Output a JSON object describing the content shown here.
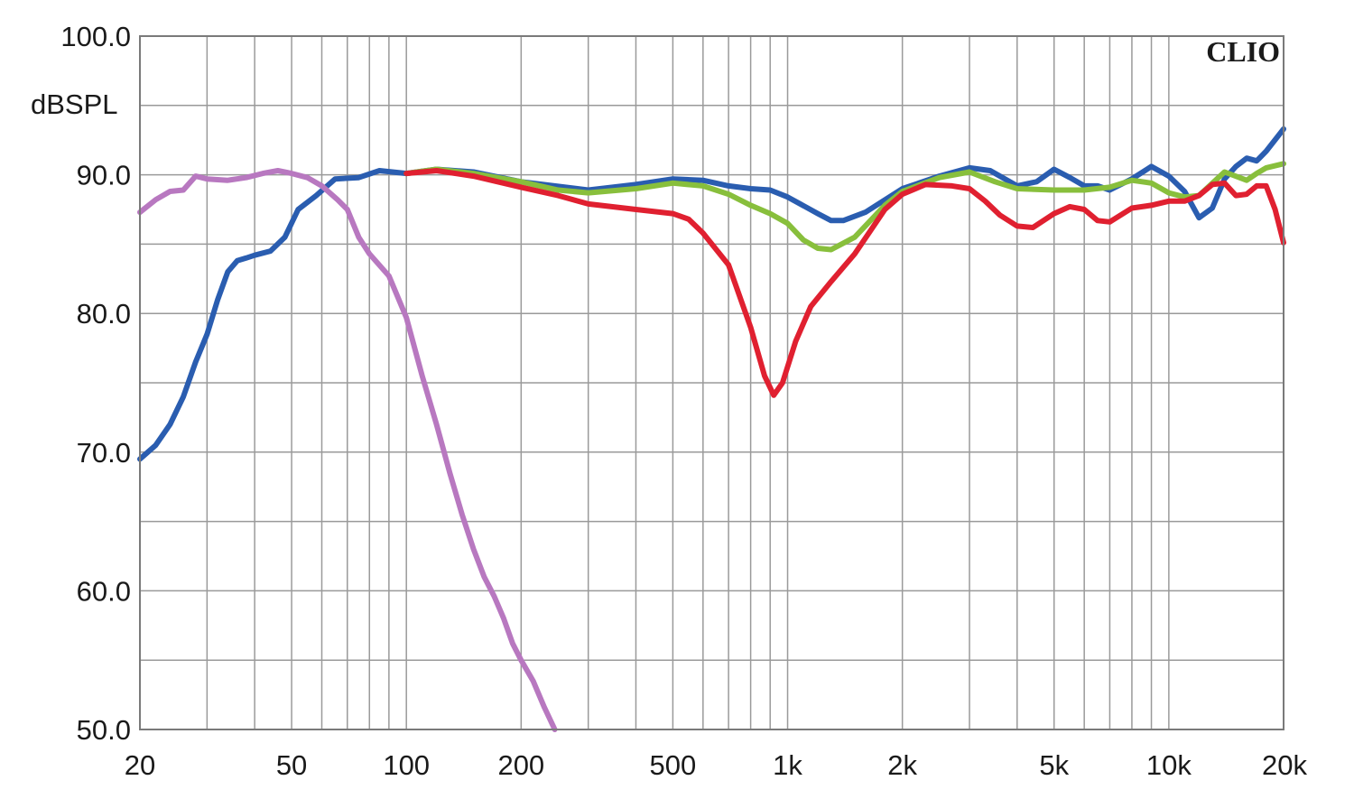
{
  "chart_data": {
    "type": "line",
    "title": "",
    "brand_label": "CLIO",
    "ylabel": "dBSPL",
    "xlabel": "",
    "x_scale": "log",
    "xlim": [
      20,
      20000
    ],
    "ylim": [
      50,
      100
    ],
    "grid": true,
    "y_ticks": [
      50,
      60,
      70,
      80,
      90,
      100
    ],
    "y_tick_labels": [
      "50.0",
      "60.0",
      "70.0",
      "80.0",
      "90.0",
      "100.0"
    ],
    "x_ticks": [
      20,
      50,
      100,
      200,
      500,
      1000,
      2000,
      5000,
      10000,
      20000
    ],
    "x_tick_labels": [
      "20",
      "50",
      "100",
      "200",
      "500",
      "1k",
      "2k",
      "5k",
      "10k",
      "20k"
    ],
    "series": [
      {
        "color": "#2a5db0",
        "points": [
          [
            20,
            69.5
          ],
          [
            22,
            70.5
          ],
          [
            24,
            72
          ],
          [
            26,
            74
          ],
          [
            28,
            76.5
          ],
          [
            30,
            78.5
          ],
          [
            32,
            81
          ],
          [
            34,
            83
          ],
          [
            36,
            83.8
          ],
          [
            38,
            84
          ],
          [
            40,
            84.2
          ],
          [
            44,
            84.5
          ],
          [
            48,
            85.5
          ],
          [
            52,
            87.5
          ],
          [
            58,
            88.5
          ],
          [
            65,
            89.7
          ],
          [
            75,
            89.8
          ],
          [
            85,
            90.3
          ],
          [
            100,
            90.1
          ],
          [
            120,
            90.4
          ],
          [
            150,
            90.2
          ],
          [
            200,
            89.5
          ],
          [
            300,
            88.9
          ],
          [
            400,
            89.3
          ],
          [
            500,
            89.7
          ],
          [
            600,
            89.6
          ],
          [
            700,
            89.2
          ],
          [
            800,
            89
          ],
          [
            900,
            88.9
          ],
          [
            1000,
            88.4
          ],
          [
            1200,
            87.2
          ],
          [
            1300,
            86.7
          ],
          [
            1400,
            86.7
          ],
          [
            1600,
            87.3
          ],
          [
            2000,
            89
          ],
          [
            2500,
            89.9
          ],
          [
            3000,
            90.5
          ],
          [
            3400,
            90.3
          ],
          [
            4000,
            89.2
          ],
          [
            4500,
            89.5
          ],
          [
            5000,
            90.4
          ],
          [
            5500,
            89.8
          ],
          [
            6000,
            89.2
          ],
          [
            6500,
            89.2
          ],
          [
            7000,
            88.9
          ],
          [
            8000,
            89.7
          ],
          [
            9000,
            90.6
          ],
          [
            10000,
            89.9
          ],
          [
            11000,
            88.8
          ],
          [
            12000,
            86.9
          ],
          [
            13000,
            87.6
          ],
          [
            14000,
            89.7
          ],
          [
            15000,
            90.6
          ],
          [
            16000,
            91.2
          ],
          [
            17000,
            91
          ],
          [
            18000,
            91.7
          ],
          [
            20000,
            93.3
          ]
        ]
      },
      {
        "color": "#88bf3c",
        "points": [
          [
            100,
            90.1
          ],
          [
            120,
            90.4
          ],
          [
            150,
            90.1
          ],
          [
            200,
            89.5
          ],
          [
            250,
            88.9
          ],
          [
            300,
            88.7
          ],
          [
            400,
            89
          ],
          [
            500,
            89.4
          ],
          [
            600,
            89.2
          ],
          [
            700,
            88.6
          ],
          [
            800,
            87.8
          ],
          [
            900,
            87.2
          ],
          [
            1000,
            86.5
          ],
          [
            1100,
            85.3
          ],
          [
            1200,
            84.7
          ],
          [
            1300,
            84.6
          ],
          [
            1500,
            85.5
          ],
          [
            1800,
            87.8
          ],
          [
            2000,
            88.8
          ],
          [
            2500,
            89.8
          ],
          [
            3000,
            90.2
          ],
          [
            3500,
            89.5
          ],
          [
            4000,
            89
          ],
          [
            5000,
            88.9
          ],
          [
            6000,
            88.9
          ],
          [
            7000,
            89.1
          ],
          [
            8000,
            89.6
          ],
          [
            9000,
            89.4
          ],
          [
            10000,
            88.7
          ],
          [
            11000,
            88.4
          ],
          [
            12000,
            88.5
          ],
          [
            14000,
            90.2
          ],
          [
            16000,
            89.6
          ],
          [
            17000,
            90.1
          ],
          [
            18000,
            90.5
          ],
          [
            20000,
            90.8
          ]
        ]
      },
      {
        "color": "#e02030",
        "points": [
          [
            100,
            90.1
          ],
          [
            120,
            90.3
          ],
          [
            150,
            89.9
          ],
          [
            200,
            89.1
          ],
          [
            250,
            88.5
          ],
          [
            300,
            87.9
          ],
          [
            400,
            87.5
          ],
          [
            500,
            87.2
          ],
          [
            550,
            86.8
          ],
          [
            600,
            85.8
          ],
          [
            700,
            83.5
          ],
          [
            800,
            79
          ],
          [
            870,
            75.5
          ],
          [
            920,
            74.1
          ],
          [
            970,
            75
          ],
          [
            1050,
            78
          ],
          [
            1150,
            80.5
          ],
          [
            1300,
            82.3
          ],
          [
            1500,
            84.3
          ],
          [
            1800,
            87.5
          ],
          [
            2000,
            88.6
          ],
          [
            2300,
            89.3
          ],
          [
            2700,
            89.2
          ],
          [
            3000,
            89
          ],
          [
            3300,
            88.1
          ],
          [
            3600,
            87.1
          ],
          [
            4000,
            86.3
          ],
          [
            4400,
            86.2
          ],
          [
            5000,
            87.2
          ],
          [
            5500,
            87.7
          ],
          [
            6000,
            87.5
          ],
          [
            6500,
            86.7
          ],
          [
            7000,
            86.6
          ],
          [
            8000,
            87.6
          ],
          [
            9000,
            87.8
          ],
          [
            10000,
            88.1
          ],
          [
            11000,
            88.1
          ],
          [
            12000,
            88.5
          ],
          [
            13000,
            89.3
          ],
          [
            14000,
            89.4
          ],
          [
            15000,
            88.5
          ],
          [
            16000,
            88.6
          ],
          [
            17000,
            89.2
          ],
          [
            18000,
            89.2
          ],
          [
            19000,
            87.5
          ],
          [
            20000,
            85.1
          ]
        ]
      },
      {
        "color": "#b878c0",
        "points": [
          [
            20,
            87.3
          ],
          [
            22,
            88.2
          ],
          [
            24,
            88.8
          ],
          [
            26,
            88.9
          ],
          [
            28,
            89.9
          ],
          [
            30,
            89.7
          ],
          [
            34,
            89.6
          ],
          [
            38,
            89.8
          ],
          [
            42,
            90.1
          ],
          [
            46,
            90.3
          ],
          [
            50,
            90.1
          ],
          [
            55,
            89.8
          ],
          [
            60,
            89.2
          ],
          [
            66,
            88.2
          ],
          [
            70,
            87.5
          ],
          [
            75,
            85.5
          ],
          [
            80,
            84.3
          ],
          [
            90,
            82.7
          ],
          [
            100,
            79.7
          ],
          [
            110,
            75.5
          ],
          [
            120,
            72
          ],
          [
            130,
            68.5
          ],
          [
            140,
            65.5
          ],
          [
            150,
            63
          ],
          [
            160,
            61
          ],
          [
            170,
            59.6
          ],
          [
            180,
            58
          ],
          [
            190,
            56.2
          ],
          [
            200,
            55
          ],
          [
            215,
            53.5
          ],
          [
            230,
            51.6
          ],
          [
            245,
            50
          ]
        ]
      }
    ]
  }
}
